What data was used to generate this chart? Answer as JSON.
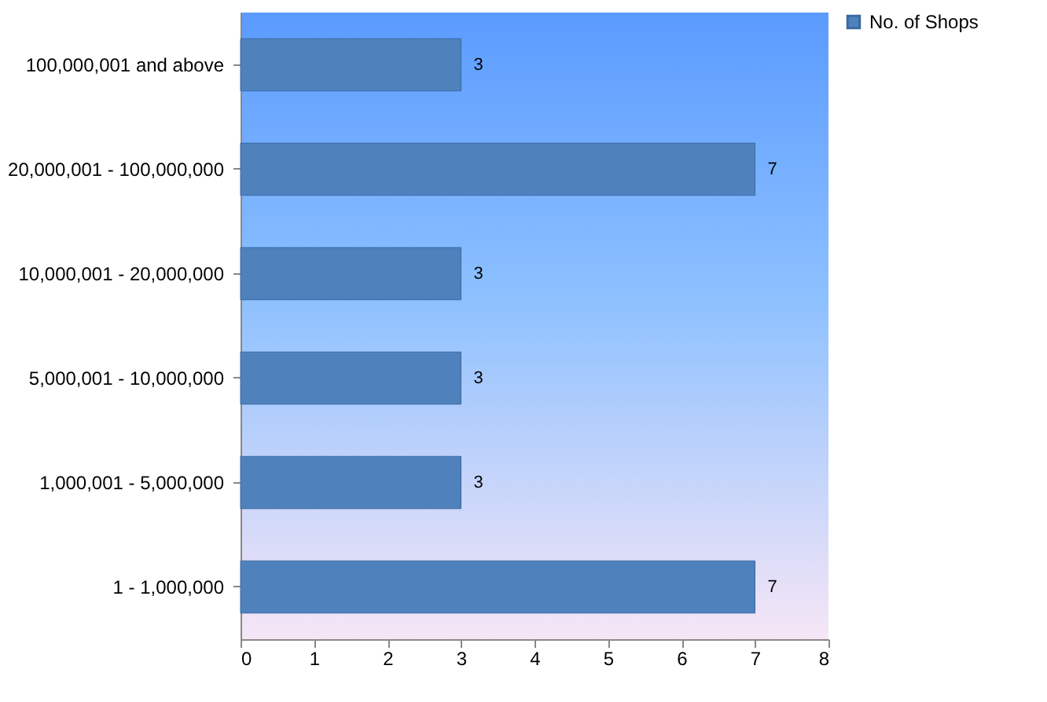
{
  "chart_data": {
    "type": "bar",
    "orientation": "horizontal",
    "categories": [
      "100,000,001 and above",
      "20,000,001 - 100,000,000",
      "10,000,001 - 20,000,000",
      "5,000,001 - 10,000,000",
      "1,000,001 - 5,000,000",
      "1 - 1,000,000"
    ],
    "series": [
      {
        "name": "No. of Shops",
        "color": "#4f81bd",
        "values": [
          3,
          7,
          3,
          3,
          3,
          7
        ]
      }
    ],
    "xlim": [
      0,
      8
    ],
    "xticks": [
      0,
      1,
      2,
      3,
      4,
      5,
      6,
      7,
      8
    ],
    "grid": false,
    "legend": "right",
    "data_labels": true
  }
}
